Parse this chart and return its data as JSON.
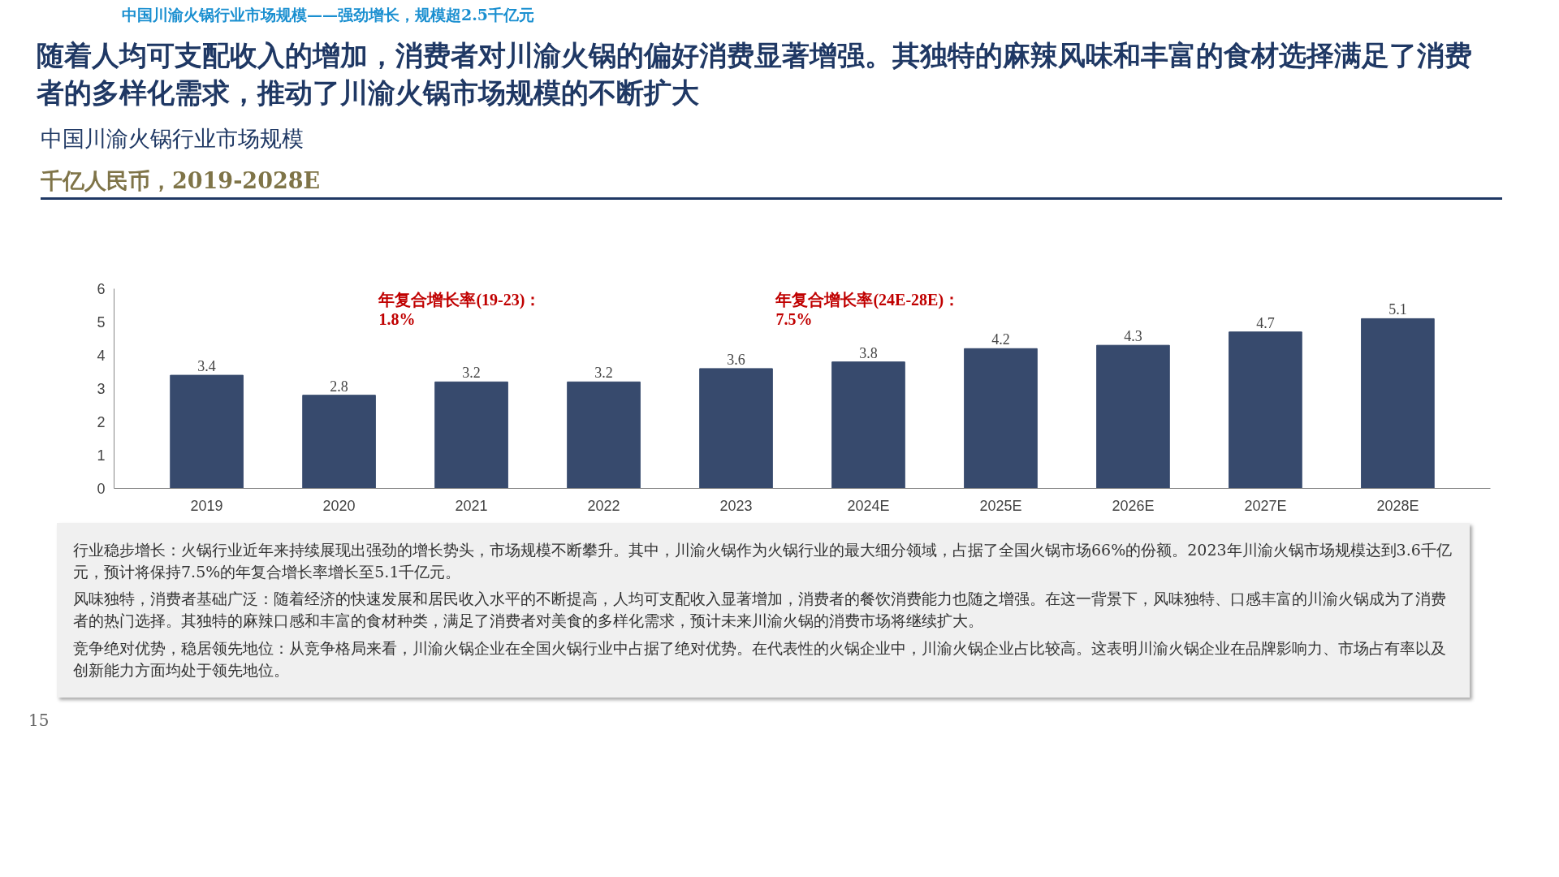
{
  "chart_data": {
    "type": "bar",
    "title": "中国川渝火锅行业市场规模",
    "subtitle": "千亿人民币，2019-2028E",
    "categories": [
      "2019",
      "2020",
      "2021",
      "2022",
      "2023",
      "2024E",
      "2025E",
      "2026E",
      "2027E",
      "2028E"
    ],
    "values": [
      3.4,
      2.8,
      3.2,
      3.2,
      3.6,
      3.8,
      4.2,
      4.3,
      4.7,
      5.1
    ],
    "color": "#374a6d",
    "ylim": [
      0,
      6
    ],
    "yticks": [
      0,
      1,
      2,
      3,
      4,
      5,
      6
    ],
    "grid": false,
    "data_labels": true,
    "annotations": [
      "中国川渝火锅行业市场规模——强劲增长，规模超2.5千亿元",
      "随着人均可支配收入的增加，消费者对川渝火锅的偏好消费显著增强。其独特的麻辣风味和丰富的食材选择满足了消费者的多样化需求，推动了川渝火锅市场规模的不断扩大",
      "年复合增长率(19-23)：1.8%",
      "年复合增长率(24E-28E)：7.5%",
      "行业稳步增长：火锅行业近年来持续展现出强劲的增长势头，市场规模不断攀升。其中，川渝火锅作为火锅行业的最大细分领域，占据了全国火锅市场66%的份额。2023年川渝火锅市场规模达到3.6千亿元，预计将保持7.5%的年复合增长率增长至5.1千亿元。",
      "风味独特，消费者基础广泛：随着经济的快速发展和居民收入水平的不断提高，人均可支配收入显著增加，消费者的餐饮消费能力也随之增强。在这一背景下，风味独特、口感丰富的川渝火锅成为了消费者的热门选择。其独特的麻辣口感和丰富的食材种类，满足了消费者对美食的多样化需求，预计未来川渝火锅的消费市场将继续扩大。",
      "竞争绝对优势，稳居领先地位：从竞争格局来看，川渝火锅企业在全国火锅行业中占据了绝对优势。在代表性的火锅企业中，川渝火锅企业占比较高。这表明川渝火锅企业在品牌影响力、市场占有率以及创新能力方面均处于领先地位。",
      "15"
    ]
  }
}
